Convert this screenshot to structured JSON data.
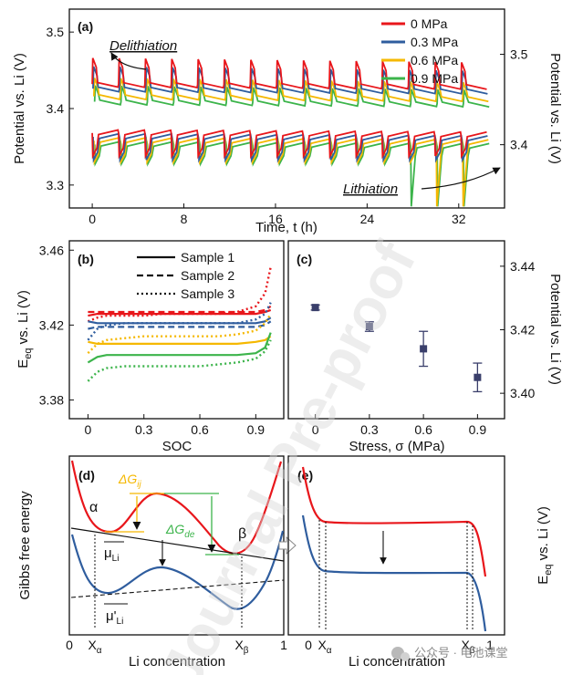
{
  "chart_data": [
    {
      "panel": "(a)",
      "type": "line",
      "xlabel": "Time, t (h)",
      "ylabel_left": "Potential vs. Li (V)",
      "ylabel_right": "Potential vs. Li (V)",
      "xlim": [
        -2,
        36
      ],
      "ylim_left": [
        3.27,
        3.53
      ],
      "ylim_right": [
        3.33,
        3.55
      ],
      "x_ticks": [
        "0",
        "8",
        "16",
        "24",
        "32"
      ],
      "y_ticks_left": [
        "3.3",
        "3.4",
        "3.5"
      ],
      "y_ticks_right": [
        "3.4",
        "3.5"
      ],
      "pulse_period_h": 2.3,
      "pulse_count": 15,
      "series": [
        {
          "name": "0 MPa",
          "color": "#e8161b",
          "delith_peak": 3.466,
          "delith_relax": 3.428,
          "lith_dip": 3.338,
          "lith_relax": 3.372
        },
        {
          "name": "0.3 MPa",
          "color": "#2f5d9e",
          "delith_peak": 3.455,
          "delith_relax": 3.422,
          "lith_dip": 3.333,
          "lith_relax": 3.367
        },
        {
          "name": "0.6 MPa",
          "color": "#f5b800",
          "delith_peak": 3.44,
          "delith_relax": 3.415,
          "lith_dip": 3.33,
          "lith_relax": 3.362
        },
        {
          "name": "0.9 MPa",
          "color": "#3cb44b",
          "delith_peak": 3.43,
          "delith_relax": 3.405,
          "lith_dip": 3.328,
          "lith_relax": 3.357
        }
      ],
      "annotations": [
        "Delithiation",
        "Lithiation"
      ]
    },
    {
      "panel": "(b)",
      "type": "line",
      "xlabel": "SOC",
      "ylabel": "Eeq vs. Li (V)",
      "xlim": [
        -0.1,
        1.05
      ],
      "ylim": [
        3.37,
        3.465
      ],
      "x_ticks": [
        "0",
        "0.3",
        "0.6",
        "0.9"
      ],
      "y_ticks": [
        "3.38",
        "3.42",
        "3.46"
      ],
      "legend": [
        "Sample 1",
        "Sample 2",
        "Sample 3"
      ],
      "x": [
        0,
        0.05,
        0.1,
        0.2,
        0.3,
        0.4,
        0.5,
        0.6,
        0.7,
        0.8,
        0.9,
        0.95,
        0.98
      ],
      "series": [
        {
          "name": "0 MPa - Sample 1",
          "color": "#e8161b",
          "style": "solid",
          "values": [
            3.425,
            3.426,
            3.426,
            3.426,
            3.426,
            3.426,
            3.426,
            3.426,
            3.426,
            3.426,
            3.426,
            3.427,
            3.428
          ]
        },
        {
          "name": "0 MPa - Sample 2",
          "color": "#e8161b",
          "style": "dashed",
          "values": [
            3.427,
            3.427,
            3.427,
            3.427,
            3.427,
            3.427,
            3.427,
            3.427,
            3.427,
            3.427,
            3.427,
            3.428,
            3.43
          ]
        },
        {
          "name": "0 MPa - Sample 3",
          "color": "#e8161b",
          "style": "dotted",
          "values": [
            3.422,
            3.424,
            3.425,
            3.425,
            3.425,
            3.426,
            3.426,
            3.426,
            3.426,
            3.427,
            3.43,
            3.437,
            3.451
          ]
        },
        {
          "name": "0.3 MPa - Sample 1",
          "color": "#2f5d9e",
          "style": "solid",
          "values": [
            3.422,
            3.421,
            3.421,
            3.421,
            3.421,
            3.421,
            3.421,
            3.421,
            3.421,
            3.421,
            3.421,
            3.422,
            3.424
          ]
        },
        {
          "name": "0.3 MPa - Sample 2",
          "color": "#2f5d9e",
          "style": "dashed",
          "values": [
            3.418,
            3.419,
            3.419,
            3.419,
            3.419,
            3.419,
            3.419,
            3.419,
            3.419,
            3.419,
            3.419,
            3.42,
            3.422
          ]
        },
        {
          "name": "0.3 MPa - Sample 3",
          "color": "#2f5d9e",
          "style": "dotted",
          "values": [
            3.412,
            3.418,
            3.42,
            3.421,
            3.421,
            3.421,
            3.421,
            3.421,
            3.421,
            3.421,
            3.423,
            3.426,
            3.432
          ]
        },
        {
          "name": "0.6 MPa - Sample 1",
          "color": "#f5b800",
          "style": "solid",
          "values": [
            3.411,
            3.41,
            3.41,
            3.41,
            3.41,
            3.41,
            3.41,
            3.41,
            3.41,
            3.41,
            3.411,
            3.412,
            3.414
          ]
        },
        {
          "name": "0.6 MPa - Sample 3",
          "color": "#f5b800",
          "style": "dotted",
          "values": [
            3.405,
            3.41,
            3.412,
            3.413,
            3.414,
            3.414,
            3.414,
            3.414,
            3.414,
            3.415,
            3.417,
            3.421,
            3.426
          ]
        },
        {
          "name": "0.9 MPa - Sample 1",
          "color": "#3cb44b",
          "style": "solid",
          "values": [
            3.4,
            3.403,
            3.404,
            3.404,
            3.404,
            3.404,
            3.404,
            3.404,
            3.404,
            3.404,
            3.405,
            3.408,
            3.416
          ]
        },
        {
          "name": "0.9 MPa - Sample 3",
          "color": "#3cb44b",
          "style": "dotted",
          "values": [
            3.39,
            3.395,
            3.397,
            3.398,
            3.398,
            3.398,
            3.398,
            3.398,
            3.399,
            3.4,
            3.402,
            3.406,
            3.412
          ]
        }
      ]
    },
    {
      "panel": "(c)",
      "type": "scatter",
      "xlabel": "Stress, σ (MPa)",
      "ylabel": "Potential vs. Li (V)",
      "xlim": [
        -0.15,
        1.05
      ],
      "ylim": [
        3.392,
        3.448
      ],
      "x_ticks": [
        "0",
        "0.3",
        "0.6",
        "0.9"
      ],
      "y_ticks": [
        "3.40",
        "3.42",
        "3.44"
      ],
      "marker_color": "#3a3f6b",
      "x": [
        0,
        0.3,
        0.6,
        0.9
      ],
      "values": [
        3.427,
        3.421,
        3.414,
        3.405
      ],
      "errors": [
        0.0008,
        0.0015,
        0.0055,
        0.0045
      ]
    },
    {
      "panel": "(d)",
      "type": "diagram",
      "xlabel": "Li concentration",
      "ylabel": "Gibbs free energy",
      "x_ticks": [
        "0",
        "Xα",
        "Xβ",
        "1"
      ],
      "labels": {
        "alpha": "α",
        "beta": "β",
        "mu_li": "μLi",
        "mu_li_prime": "μ'Li",
        "dg_ij": "ΔGij",
        "dg_de": "ΔGde"
      }
    },
    {
      "panel": "(e)",
      "type": "diagram",
      "xlabel": "Li concentration",
      "ylabel": "Eeq vs. Li (V)",
      "x_ticks": [
        "0",
        "Xα",
        "Xβ",
        "1"
      ]
    }
  ],
  "watermark": "Journal Pre-proof",
  "footer": {
    "source": "公众号 · 电池课堂"
  }
}
